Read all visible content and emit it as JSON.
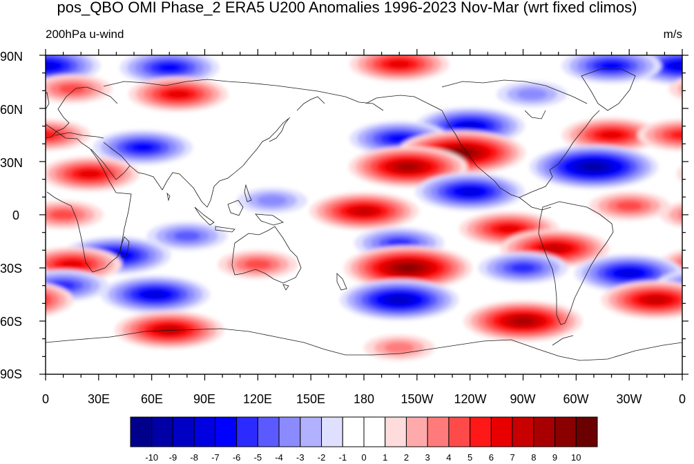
{
  "title": "pos_QBO OMI Phase_2 ERA5 U200 Anomalies 1996-2023 Nov-Mar (wrt fixed climos)",
  "left_label": "200hPa u-wind",
  "units": "m/s",
  "lat_labels": [
    "90N",
    "60N",
    "30N",
    "0",
    "30S",
    "60S",
    "90S"
  ],
  "lon_labels": [
    "0",
    "30E",
    "60E",
    "90E",
    "120E",
    "150E",
    "180",
    "150W",
    "120W",
    "90W",
    "60W",
    "30W",
    "0"
  ],
  "colorbar": {
    "labels": [
      "-10",
      "-9",
      "-8",
      "-7",
      "-6",
      "-5",
      "-4",
      "-3",
      "-2",
      "-1",
      "0",
      "1",
      "2",
      "3",
      "4",
      "5",
      "6",
      "7",
      "8",
      "9",
      "10"
    ],
    "colors": [
      "#00008a",
      "#0000a6",
      "#0000c4",
      "#0000e0",
      "#0000ff",
      "#2b2bff",
      "#5a5aff",
      "#8b8bff",
      "#b1b1ff",
      "#dfdfff",
      "#ffffff",
      "#ffffff",
      "#ffdcdc",
      "#ffaaaa",
      "#ff7b7b",
      "#ff4a4a",
      "#ff1818",
      "#e80000",
      "#c80000",
      "#a80000",
      "#8a0000",
      "#6a0000"
    ]
  },
  "anomalies": [
    {
      "lon": 0,
      "lat": 84,
      "value": -7
    },
    {
      "lon": 70,
      "lat": 83,
      "value": -6
    },
    {
      "lon": 200,
      "lat": 85,
      "value": 6
    },
    {
      "lon": 320,
      "lat": 84,
      "value": -6
    },
    {
      "lon": 75,
      "lat": 68,
      "value": 6
    },
    {
      "lon": 15,
      "lat": 71,
      "value": 4
    },
    {
      "lon": 275,
      "lat": 68,
      "value": -3
    },
    {
      "lon": 240,
      "lat": 50,
      "value": -7
    },
    {
      "lon": 200,
      "lat": 43,
      "value": -6
    },
    {
      "lon": 320,
      "lat": 45,
      "value": 6
    },
    {
      "lon": 0,
      "lat": 45,
      "value": 5
    },
    {
      "lon": 55,
      "lat": 38,
      "value": -6
    },
    {
      "lon": 235,
      "lat": 35,
      "value": 9
    },
    {
      "lon": 205,
      "lat": 27,
      "value": 8
    },
    {
      "lon": 310,
      "lat": 27,
      "value": -9
    },
    {
      "lon": 25,
      "lat": 23,
      "value": 6
    },
    {
      "lon": 240,
      "lat": 13,
      "value": -7
    },
    {
      "lon": 128,
      "lat": 8,
      "value": -3
    },
    {
      "lon": 180,
      "lat": 2,
      "value": 7
    },
    {
      "lon": 330,
      "lat": 5,
      "value": 4
    },
    {
      "lon": 10,
      "lat": 0,
      "value": 4
    },
    {
      "lon": 262,
      "lat": -8,
      "value": 6
    },
    {
      "lon": 80,
      "lat": -12,
      "value": -4
    },
    {
      "lon": 288,
      "lat": -19,
      "value": 7
    },
    {
      "lon": 200,
      "lat": -16,
      "value": -5
    },
    {
      "lon": 40,
      "lat": -23,
      "value": -7
    },
    {
      "lon": 15,
      "lat": -28,
      "value": 6
    },
    {
      "lon": 205,
      "lat": -30,
      "value": 9
    },
    {
      "lon": 120,
      "lat": -28,
      "value": 4
    },
    {
      "lon": 270,
      "lat": -30,
      "value": -5
    },
    {
      "lon": 330,
      "lat": -33,
      "value": -7
    },
    {
      "lon": 62,
      "lat": -45,
      "value": -7
    },
    {
      "lon": 10,
      "lat": -40,
      "value": -5
    },
    {
      "lon": 200,
      "lat": -48,
      "value": -8
    },
    {
      "lon": 270,
      "lat": -60,
      "value": 8
    },
    {
      "lon": 345,
      "lat": -48,
      "value": 7
    },
    {
      "lon": 70,
      "lat": -65,
      "value": 7
    },
    {
      "lon": 200,
      "lat": -75,
      "value": 3
    }
  ]
}
